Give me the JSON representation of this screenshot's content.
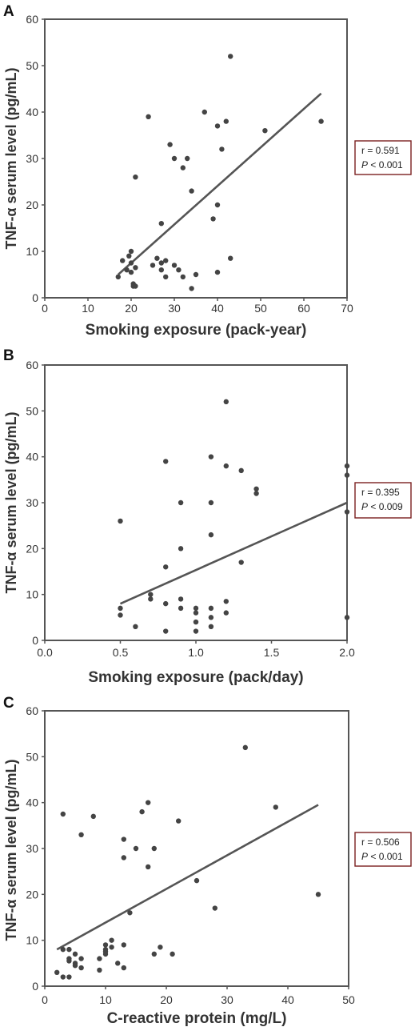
{
  "chart_data": [
    {
      "type": "scatter",
      "panel": "A",
      "xlabel": "Smoking exposure (pack-year)",
      "ylabel": "TNF-α serum level (pg/mL)",
      "xlim": [
        0,
        70
      ],
      "ylim": [
        0,
        60
      ],
      "x_ticks": [
        "0",
        "10",
        "20",
        "30",
        "40",
        "50",
        "60",
        "70"
      ],
      "y_ticks": [
        "0",
        "10",
        "20",
        "30",
        "40",
        "50",
        "60"
      ],
      "stats": {
        "r": "r = 0.591",
        "p_symbol": "P",
        "p": " < 0.001"
      },
      "fit_line": {
        "x": [
          17,
          64
        ],
        "y": [
          5,
          44
        ]
      },
      "points": [
        [
          17,
          4.5
        ],
        [
          18,
          8
        ],
        [
          19,
          6
        ],
        [
          19.5,
          9
        ],
        [
          20,
          7.5
        ],
        [
          20,
          10
        ],
        [
          20,
          5.5
        ],
        [
          20.5,
          3
        ],
        [
          21,
          6.5
        ],
        [
          21,
          2.5
        ],
        [
          20.5,
          2.5
        ],
        [
          21,
          26
        ],
        [
          24,
          39
        ],
        [
          25,
          7
        ],
        [
          26,
          8.5
        ],
        [
          27,
          6
        ],
        [
          27,
          7.5
        ],
        [
          27,
          16
        ],
        [
          28,
          4.5
        ],
        [
          28,
          8
        ],
        [
          29,
          33
        ],
        [
          30,
          30
        ],
        [
          30,
          7
        ],
        [
          31,
          6
        ],
        [
          32,
          28
        ],
        [
          32,
          4.5
        ],
        [
          33,
          30
        ],
        [
          34,
          2
        ],
        [
          34,
          23
        ],
        [
          35,
          5
        ],
        [
          37,
          40
        ],
        [
          39,
          17
        ],
        [
          40,
          37
        ],
        [
          40,
          5.5
        ],
        [
          40,
          20
        ],
        [
          41,
          32
        ],
        [
          42,
          38
        ],
        [
          43,
          52
        ],
        [
          43,
          8.5
        ],
        [
          51,
          36
        ],
        [
          64,
          38
        ]
      ]
    },
    {
      "type": "scatter",
      "panel": "B",
      "xlabel": "Smoking exposure (pack/day)",
      "ylabel": "TNF-α serum level (pg/mL)",
      "xlim": [
        0,
        2
      ],
      "ylim": [
        0,
        60
      ],
      "x_ticks": [
        "0.0",
        "0.5",
        "1.0",
        "1.5",
        "2.0"
      ],
      "y_ticks": [
        "0",
        "10",
        "20",
        "30",
        "40",
        "50",
        "60"
      ],
      "stats": {
        "r": "r = 0.395",
        "p_symbol": "P",
        "p": " < 0.009"
      },
      "fit_line": {
        "x": [
          0.5,
          2.0
        ],
        "y": [
          8,
          30
        ]
      },
      "points": [
        [
          0.5,
          26
        ],
        [
          0.5,
          7
        ],
        [
          0.5,
          5.5
        ],
        [
          0.6,
          3
        ],
        [
          0.7,
          9
        ],
        [
          0.7,
          10
        ],
        [
          0.8,
          39
        ],
        [
          0.8,
          16
        ],
        [
          0.8,
          8
        ],
        [
          0.8,
          2
        ],
        [
          0.9,
          30
        ],
        [
          0.9,
          20
        ],
        [
          0.9,
          9
        ],
        [
          0.9,
          7
        ],
        [
          1.0,
          7
        ],
        [
          1.0,
          6
        ],
        [
          1.0,
          4
        ],
        [
          1.0,
          2
        ],
        [
          1.1,
          40
        ],
        [
          1.1,
          30
        ],
        [
          1.1,
          23
        ],
        [
          1.1,
          7
        ],
        [
          1.1,
          5
        ],
        [
          1.1,
          3
        ],
        [
          1.2,
          52
        ],
        [
          1.2,
          38
        ],
        [
          1.2,
          8.5
        ],
        [
          1.2,
          6
        ],
        [
          1.3,
          37
        ],
        [
          1.3,
          17
        ],
        [
          1.4,
          33
        ],
        [
          1.4,
          32
        ],
        [
          2.0,
          38
        ],
        [
          2.0,
          36
        ],
        [
          2.0,
          28
        ],
        [
          2.0,
          5
        ]
      ]
    },
    {
      "type": "scatter",
      "panel": "C",
      "xlabel": "C-reactive protein (mg/L)",
      "ylabel": "TNF-α serum level (pg/mL)",
      "xlim": [
        0,
        50
      ],
      "ylim": [
        0,
        60
      ],
      "x_ticks": [
        "0",
        "10",
        "20",
        "30",
        "40",
        "50"
      ],
      "y_ticks": [
        "0",
        "10",
        "20",
        "30",
        "40",
        "50",
        "60"
      ],
      "stats": {
        "r": "r = 0.506",
        "p_symbol": "P",
        "p": " < 0.001"
      },
      "fit_line": {
        "x": [
          2,
          45
        ],
        "y": [
          8,
          39.5
        ]
      },
      "points": [
        [
          2,
          3
        ],
        [
          3,
          8
        ],
        [
          3,
          2
        ],
        [
          4,
          6
        ],
        [
          4,
          8
        ],
        [
          4,
          5.5
        ],
        [
          4,
          2
        ],
        [
          5,
          7
        ],
        [
          5,
          5
        ],
        [
          5,
          4.5
        ],
        [
          6,
          6
        ],
        [
          6,
          4
        ],
        [
          3,
          37.5
        ],
        [
          6,
          33
        ],
        [
          8,
          37
        ],
        [
          9,
          6
        ],
        [
          9,
          3.5
        ],
        [
          10,
          9
        ],
        [
          10,
          8
        ],
        [
          10,
          7.5
        ],
        [
          10,
          7
        ],
        [
          11,
          10
        ],
        [
          11,
          8.5
        ],
        [
          12,
          5
        ],
        [
          13,
          9
        ],
        [
          13,
          4
        ],
        [
          13,
          32
        ],
        [
          13,
          28
        ],
        [
          14,
          16
        ],
        [
          15,
          30
        ],
        [
          16,
          38
        ],
        [
          17,
          40
        ],
        [
          17,
          26
        ],
        [
          18,
          30
        ],
        [
          18,
          7
        ],
        [
          19,
          8.5
        ],
        [
          21,
          7
        ],
        [
          22,
          36
        ],
        [
          25,
          23
        ],
        [
          28,
          17
        ],
        [
          33,
          52
        ],
        [
          38,
          39
        ],
        [
          45,
          20
        ]
      ]
    }
  ]
}
